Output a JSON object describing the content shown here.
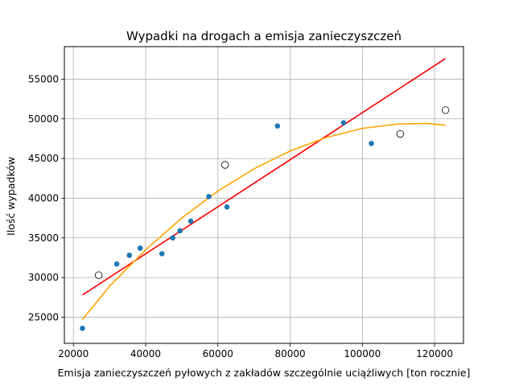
{
  "chart_data": {
    "type": "scatter",
    "title": "Wypadki na drogach a emisja zanieczyszczeń",
    "xlabel": "Emisja zanieczyszczeń pyłowych z zakładów szczególnie uciążliwych [ton rocznie]",
    "ylabel": "Ilość wypadków",
    "xlim": [
      17500,
      128000
    ],
    "ylim": [
      21700,
      59100
    ],
    "xticks": [
      20000,
      40000,
      60000,
      80000,
      100000,
      120000
    ],
    "xtick_labels": [
      "20000",
      "40000",
      "60000",
      "80000",
      "100000",
      "120000"
    ],
    "yticks": [
      25000,
      30000,
      35000,
      40000,
      45000,
      50000,
      55000
    ],
    "ytick_labels": [
      "25000",
      "30000",
      "35000",
      "40000",
      "45000",
      "50000",
      "55000"
    ],
    "grid": true,
    "series": [
      {
        "marker": "filled",
        "color": "#1f77b4",
        "x": [
          22500,
          32000,
          35500,
          38500,
          44500,
          47500,
          49500,
          52500,
          57500,
          62500,
          76500,
          94800,
          102500
        ],
        "y": [
          23600,
          31700,
          32800,
          33700,
          33000,
          35000,
          35900,
          37100,
          40200,
          38900,
          49100,
          49500,
          46900
        ]
      },
      {
        "marker": "open",
        "color": "#000000",
        "x": [
          27000,
          62000,
          110500,
          123000
        ],
        "y": [
          30300,
          44200,
          48100,
          51100
        ]
      },
      {
        "line": "linear-fit",
        "color": "#ff0000",
        "x": [
          22500,
          123000
        ],
        "y": [
          27800,
          57600
        ]
      },
      {
        "line": "quadratic-fit",
        "color": "#ffa500",
        "x": [
          22500,
          30000,
          40000,
          50000,
          60000,
          70000,
          80000,
          90000,
          100000,
          110000,
          117500,
          123000
        ],
        "y": [
          24700,
          28900,
          33500,
          37500,
          40900,
          43700,
          45950,
          47650,
          48800,
          49350,
          49430,
          49200
        ]
      }
    ]
  }
}
